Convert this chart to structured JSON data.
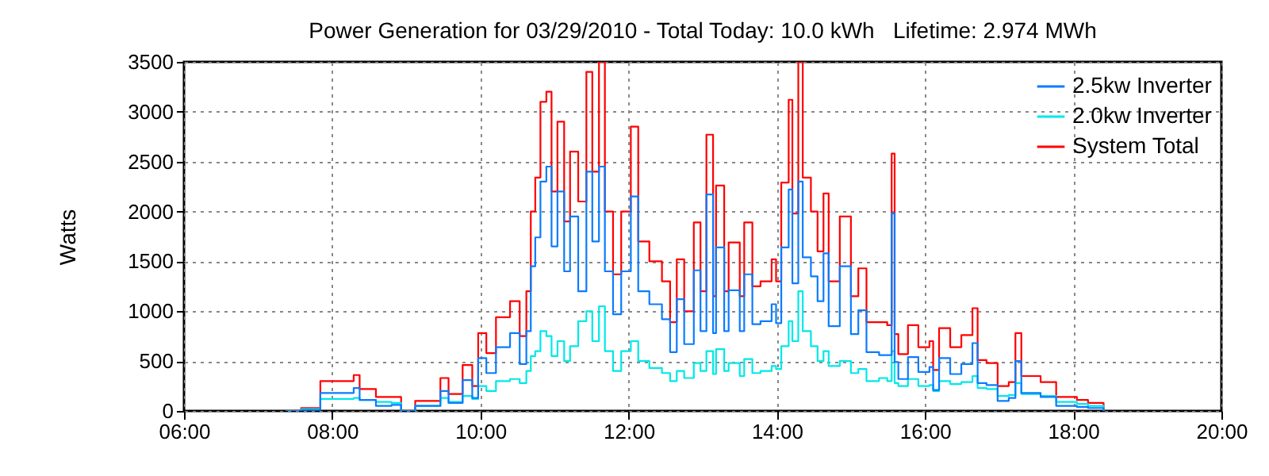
{
  "chart_data": {
    "type": "step",
    "title": "Power Generation for 03/29/2010 - Total Today: 10.0 kWh   Lifetime: 2.974 MWh",
    "ylabel": "Watts",
    "x": [
      7.37,
      7.58,
      7.84,
      8.01,
      8.29,
      8.37,
      8.59,
      8.8,
      8.93,
      9.12,
      9.46,
      9.57,
      9.76,
      9.89,
      9.97,
      10.08,
      10.21,
      10.4,
      10.53,
      10.62,
      10.68,
      10.74,
      10.81,
      10.89,
      10.96,
      11.04,
      11.13,
      11.21,
      11.32,
      11.43,
      11.51,
      11.6,
      11.68,
      11.79,
      11.9,
      12.03,
      12.13,
      12.28,
      12.45,
      12.56,
      12.65,
      12.75,
      12.88,
      12.97,
      13.05,
      13.14,
      13.18,
      13.29,
      13.35,
      13.5,
      13.56,
      13.67,
      13.78,
      13.93,
      13.99,
      14.06,
      14.16,
      14.21,
      14.29,
      14.35,
      14.46,
      14.55,
      14.63,
      14.7,
      14.85,
      15.0,
      15.1,
      15.21,
      15.38,
      15.49,
      15.55,
      15.59,
      15.64,
      15.77,
      15.91,
      16.06,
      16.11,
      16.19,
      16.34,
      16.49,
      16.64,
      16.71,
      16.83,
      16.98,
      17.13,
      17.22,
      17.3,
      17.56,
      17.77,
      18.05,
      18.2,
      18.41
    ],
    "series": [
      {
        "name": "2.5kw Inverter",
        "color": "#0a7cff",
        "values": [
          0,
          10,
          180,
          180,
          230,
          110,
          50,
          60,
          0,
          50,
          200,
          80,
          310,
          130,
          530,
          380,
          640,
          780,
          470,
          800,
          1450,
          1740,
          2300,
          2450,
          1650,
          2200,
          1400,
          1950,
          1200,
          2400,
          1700,
          2450,
          1400,
          970,
          1400,
          2150,
          1200,
          1070,
          920,
          590,
          1120,
          670,
          1410,
          800,
          2170,
          780,
          1640,
          800,
          1210,
          800,
          1370,
          870,
          900,
          1070,
          880,
          1640,
          2220,
          1280,
          2300,
          1540,
          1350,
          1100,
          1580,
          850,
          1450,
          770,
          1010,
          590,
          560,
          560,
          1980,
          490,
          320,
          540,
          390,
          440,
          210,
          530,
          370,
          470,
          680,
          280,
          260,
          100,
          130,
          500,
          180,
          140,
          50,
          40,
          30,
          0
        ]
      },
      {
        "name": "2.0kw Inverter",
        "color": "#00e8e8",
        "values": [
          0,
          20,
          120,
          120,
          130,
          110,
          90,
          80,
          0,
          50,
          130,
          90,
          150,
          120,
          250,
          200,
          300,
          320,
          280,
          400,
          550,
          600,
          800,
          750,
          550,
          700,
          500,
          650,
          900,
          1000,
          700,
          1050,
          600,
          400,
          600,
          700,
          500,
          430,
          380,
          300,
          400,
          330,
          480,
          400,
          600,
          370,
          620,
          400,
          480,
          350,
          520,
          380,
          400,
          450,
          420,
          650,
          900,
          700,
          1200,
          800,
          650,
          500,
          600,
          450,
          500,
          380,
          420,
          300,
          330,
          300,
          600,
          280,
          250,
          320,
          250,
          260,
          200,
          300,
          270,
          290,
          350,
          230,
          220,
          150,
          160,
          280,
          170,
          150,
          90,
          70,
          50,
          0
        ]
      },
      {
        "name": "System Total",
        "color": "#ff0000",
        "values": [
          0,
          30,
          300,
          300,
          360,
          220,
          140,
          140,
          0,
          100,
          330,
          170,
          460,
          250,
          780,
          580,
          940,
          1100,
          750,
          1200,
          2000,
          2340,
          3100,
          3200,
          2200,
          2900,
          1900,
          2600,
          2100,
          3400,
          2400,
          3500,
          2000,
          1370,
          2000,
          2850,
          1700,
          1500,
          1300,
          890,
          1520,
          1000,
          1890,
          1200,
          2770,
          1150,
          2260,
          1200,
          1690,
          1150,
          1890,
          1250,
          1300,
          1520,
          1300,
          2290,
          3120,
          1980,
          3500,
          2340,
          2000,
          1600,
          2180,
          1300,
          1950,
          1150,
          1430,
          890,
          890,
          860,
          2580,
          770,
          570,
          860,
          640,
          700,
          410,
          830,
          640,
          760,
          1030,
          510,
          480,
          250,
          290,
          780,
          350,
          290,
          140,
          110,
          80,
          0
        ]
      }
    ],
    "xlim": [
      6,
      20
    ],
    "xticks": [
      {
        "value": 6,
        "label": "06:00"
      },
      {
        "value": 8,
        "label": "08:00"
      },
      {
        "value": 10,
        "label": "10:00"
      },
      {
        "value": 12,
        "label": "12:00"
      },
      {
        "value": 14,
        "label": "14:00"
      },
      {
        "value": 16,
        "label": "16:00"
      },
      {
        "value": 18,
        "label": "18:00"
      },
      {
        "value": 20,
        "label": "20:00"
      }
    ],
    "ylim": [
      0,
      3500
    ],
    "yticks": [
      0,
      500,
      1000,
      1500,
      2000,
      2500,
      3000,
      3500
    ],
    "grid": true,
    "legend": "top right"
  }
}
